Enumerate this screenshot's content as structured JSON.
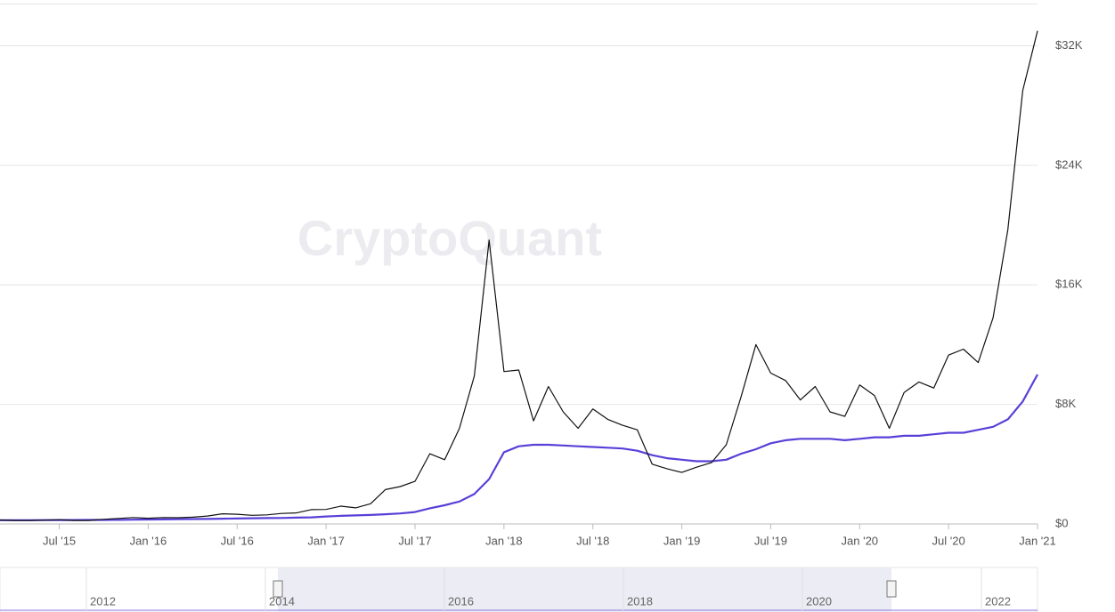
{
  "chart_data": {
    "type": "line",
    "watermark": "CryptoQuant",
    "x": [
      "2015-03",
      "2015-04",
      "2015-05",
      "2015-06",
      "2015-07",
      "2015-08",
      "2015-09",
      "2015-10",
      "2015-11",
      "2015-12",
      "2016-01",
      "2016-02",
      "2016-03",
      "2016-04",
      "2016-05",
      "2016-06",
      "2016-07",
      "2016-08",
      "2016-09",
      "2016-10",
      "2016-11",
      "2016-12",
      "2017-01",
      "2017-02",
      "2017-03",
      "2017-04",
      "2017-05",
      "2017-06",
      "2017-07",
      "2017-08",
      "2017-09",
      "2017-10",
      "2017-11",
      "2017-12",
      "2018-01",
      "2018-02",
      "2018-03",
      "2018-04",
      "2018-05",
      "2018-06",
      "2018-07",
      "2018-08",
      "2018-09",
      "2018-10",
      "2018-11",
      "2018-12",
      "2019-01",
      "2019-02",
      "2019-03",
      "2019-04",
      "2019-05",
      "2019-06",
      "2019-07",
      "2019-08",
      "2019-09",
      "2019-10",
      "2019-11",
      "2019-12",
      "2020-01",
      "2020-02",
      "2020-03",
      "2020-04",
      "2020-05",
      "2020-06",
      "2020-07",
      "2020-08",
      "2020-09",
      "2020-10",
      "2020-11",
      "2020-12",
      "2021-01"
    ],
    "series": [
      {
        "color": "#111111",
        "values": [
          260,
          230,
          235,
          250,
          280,
          230,
          235,
          310,
          370,
          430,
          380,
          430,
          415,
          450,
          530,
          680,
          650,
          575,
          610,
          700,
          740,
          960,
          970,
          1190,
          1080,
          1350,
          2300,
          2500,
          2850,
          4700,
          4300,
          6400,
          9900,
          19000,
          10200,
          10300,
          6900,
          9200,
          7500,
          6400,
          7700,
          7000,
          6600,
          6300,
          4000,
          3700,
          3450,
          3800,
          4100,
          5300,
          8500,
          12000,
          10100,
          9600,
          8300,
          9200,
          7500,
          7200,
          9300,
          8600,
          6400,
          8800,
          9500,
          9100,
          11300,
          11700,
          10800,
          13800,
          19700,
          29000,
          33000
        ]
      },
      {
        "color": "#5a3fd8",
        "values": [
          250,
          250,
          250,
          255,
          260,
          260,
          265,
          270,
          275,
          285,
          295,
          305,
          315,
          325,
          335,
          350,
          365,
          380,
          390,
          400,
          420,
          440,
          500,
          540,
          570,
          600,
          650,
          700,
          800,
          1050,
          1250,
          1500,
          2000,
          3000,
          4800,
          5200,
          5300,
          5300,
          5250,
          5200,
          5150,
          5100,
          5050,
          4900,
          4600,
          4400,
          4300,
          4200,
          4200,
          4300,
          4700,
          5000,
          5400,
          5600,
          5700,
          5700,
          5700,
          5600,
          5700,
          5800,
          5800,
          5900,
          5900,
          6000,
          6100,
          6100,
          6300,
          6500,
          7000,
          8200,
          10000
        ]
      }
    ],
    "xlim": [
      "2015-03",
      "2021-01"
    ],
    "xticks": [
      {
        "value": "2015-07",
        "label": "Jul '15"
      },
      {
        "value": "2016-01",
        "label": "Jan '16"
      },
      {
        "value": "2016-07",
        "label": "Jul '16"
      },
      {
        "value": "2017-01",
        "label": "Jan '17"
      },
      {
        "value": "2017-07",
        "label": "Jul '17"
      },
      {
        "value": "2018-01",
        "label": "Jan '18"
      },
      {
        "value": "2018-07",
        "label": "Jul '18"
      },
      {
        "value": "2019-01",
        "label": "Jan '19"
      },
      {
        "value": "2019-07",
        "label": "Jul '19"
      },
      {
        "value": "2020-01",
        "label": "Jan '20"
      },
      {
        "value": "2020-07",
        "label": "Jul '20"
      },
      {
        "value": "2021-01",
        "label": "Jan '21"
      }
    ],
    "ylim": [
      0,
      34800
    ],
    "yticks": [
      {
        "value": 0,
        "label": "$0"
      },
      {
        "value": 8000,
        "label": "$8K"
      },
      {
        "value": 16000,
        "label": "$16K"
      },
      {
        "value": 24000,
        "label": "$24K"
      },
      {
        "value": 32000,
        "label": "$32K"
      }
    ],
    "grid": true,
    "navigator": {
      "labels": [
        "2012",
        "2014",
        "2016",
        "2018",
        "2020",
        "2022"
      ]
    }
  }
}
